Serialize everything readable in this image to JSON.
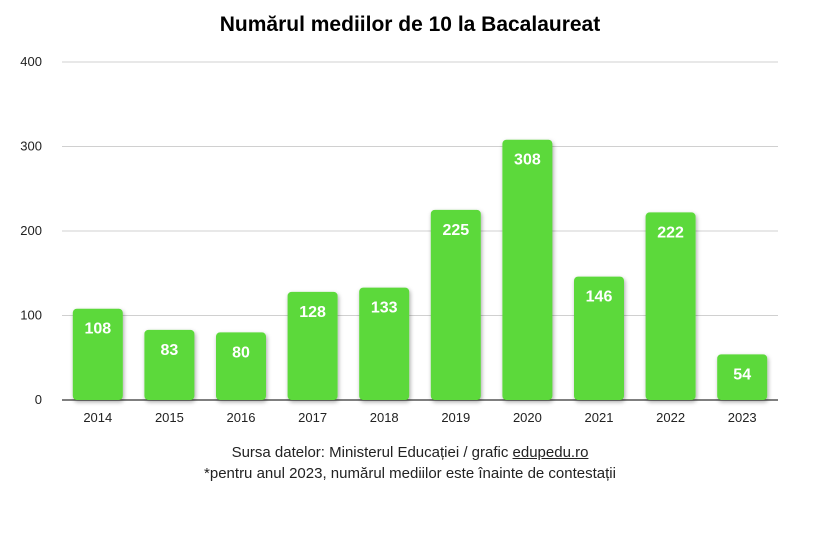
{
  "chart_data": {
    "type": "bar",
    "title": "Numărul mediilor de 10 la Bacalaureat",
    "categories": [
      "2014",
      "2015",
      "2016",
      "2017",
      "2018",
      "2019",
      "2020",
      "2021",
      "2022",
      "2023"
    ],
    "values": [
      108,
      83,
      80,
      128,
      133,
      225,
      308,
      146,
      222,
      54
    ],
    "ylim": [
      0,
      400
    ],
    "yticks": [
      "0",
      "100",
      "200",
      "300",
      "400"
    ],
    "grid": true,
    "bar_color": "#5cd93a",
    "label_color": "#ffffff"
  },
  "footer": {
    "source_prefix": "Sursa datelor: Ministerul Educației / grafic ",
    "source_link": "edupedu.ro",
    "note": "*pentru anul 2023, numărul mediilor este înainte de contestații"
  }
}
